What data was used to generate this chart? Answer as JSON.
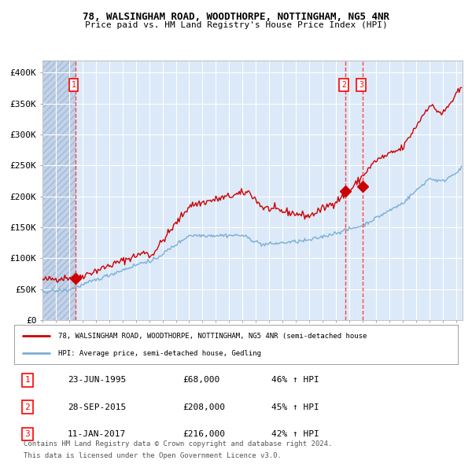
{
  "title1": "78, WALSINGHAM ROAD, WOODTHORPE, NOTTINGHAM, NG5 4NR",
  "title2": "Price paid vs. HM Land Registry's House Price Index (HPI)",
  "bg_color": "#dce9f8",
  "hatch_color": "#c0d0e8",
  "grid_color": "#ffffff",
  "red_line_color": "#cc0000",
  "blue_line_color": "#7bafd4",
  "sale_marker_color": "#cc0000",
  "vline_color": "#ff4444",
  "ylim": [
    0,
    420000
  ],
  "yticks": [
    0,
    50000,
    100000,
    150000,
    200000,
    250000,
    300000,
    350000,
    400000
  ],
  "ytick_labels": [
    "£0",
    "£50K",
    "£100K",
    "£150K",
    "£200K",
    "£250K",
    "£300K",
    "£350K",
    "£400K"
  ],
  "xstart_year": 1993,
  "xend_year": 2024,
  "sale1_year": 1995.48,
  "sale1_price": 68000,
  "sale2_year": 2015.74,
  "sale2_price": 208000,
  "sale3_year": 2017.03,
  "sale3_price": 216000,
  "legend_red": "78, WALSINGHAM ROAD, WOODTHORPE, NOTTINGHAM, NG5 4NR (semi-detached house",
  "legend_blue": "HPI: Average price, semi-detached house, Gedling",
  "table_rows": [
    [
      "1",
      "23-JUN-1995",
      "£68,000",
      "46% ↑ HPI"
    ],
    [
      "2",
      "28-SEP-2015",
      "£208,000",
      "45% ↑ HPI"
    ],
    [
      "3",
      "11-JAN-2017",
      "£216,000",
      "42% ↑ HPI"
    ]
  ],
  "footer1": "Contains HM Land Registry data © Crown copyright and database right 2024.",
  "footer2": "This data is licensed under the Open Government Licence v3.0.",
  "hatch_xend": 1995.48
}
